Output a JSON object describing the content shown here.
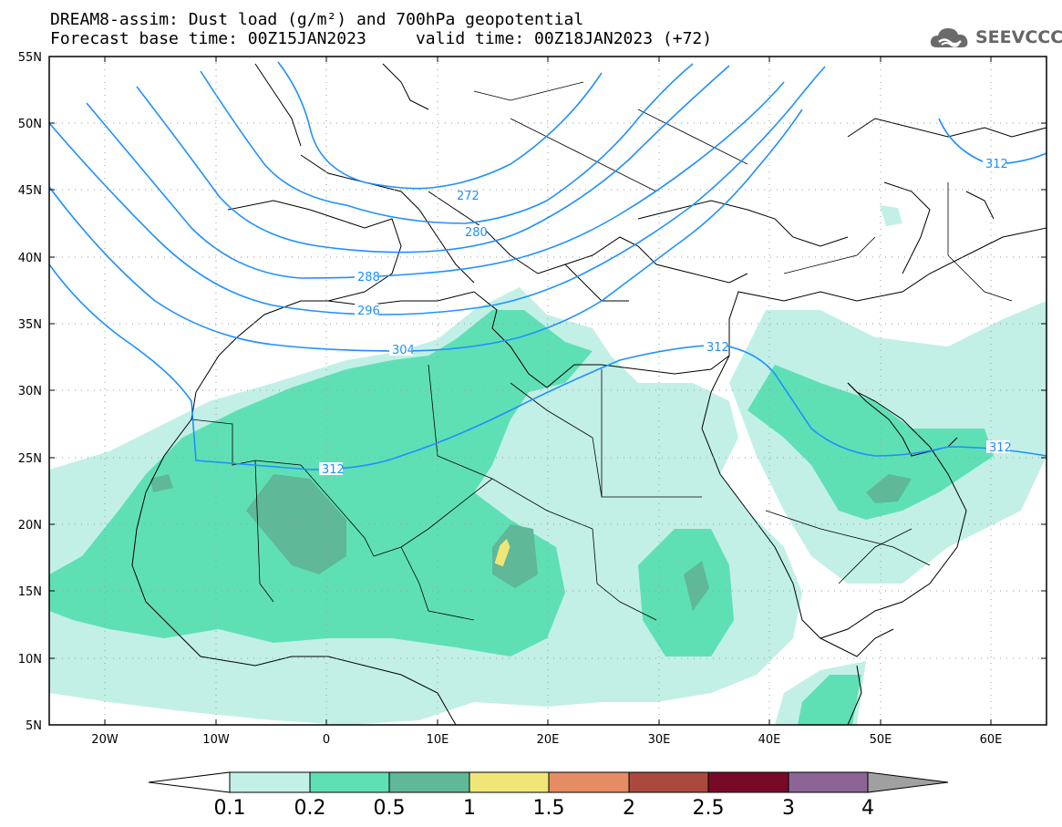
{
  "title_line1": "DREAM8-assim: Dust load (g/m²) and 700hPa geopotential",
  "title_line2": "Forecast base time: 00Z15JAN2023     valid time: 00Z18JAN2023 (+72)",
  "logo": {
    "icon": "cloud-icon",
    "text": "SEEVCCC"
  },
  "map": {
    "lon_range": [
      -25,
      65
    ],
    "lat_range": [
      5,
      55
    ],
    "lat_ticks": [
      "55N",
      "50N",
      "45N",
      "40N",
      "35N",
      "30N",
      "25N",
      "20N",
      "15N",
      "10N",
      "5N"
    ],
    "lon_ticks": [
      "20W",
      "10W",
      "0",
      "10E",
      "20E",
      "30E",
      "40E",
      "50E",
      "60E"
    ],
    "contour_color": "#1e90ff",
    "contour_labels": [
      "272",
      "280",
      "288",
      "296",
      "304",
      "312",
      "312",
      "312",
      "312"
    ]
  },
  "colorbar": {
    "labels": [
      "0.1",
      "0.2",
      "0.5",
      "1",
      "1.5",
      "2",
      "2.5",
      "3",
      "4"
    ],
    "colors": [
      "#c2f0e6",
      "#5fe0b4",
      "#5fb898",
      "#f0e678",
      "#e68c64",
      "#aa4a3c",
      "#780a28",
      "#8c6496",
      "#a0a0a0"
    ]
  }
}
